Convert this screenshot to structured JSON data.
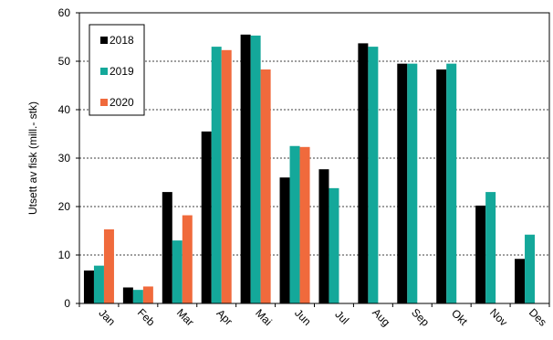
{
  "chart_data": {
    "type": "bar",
    "title": "",
    "xlabel": "",
    "ylabel": "Utsett av fisk (mill.- stk)",
    "ylim": [
      0,
      60
    ],
    "yticks": [
      0,
      10,
      20,
      30,
      40,
      50,
      60
    ],
    "grid": true,
    "legend_position": "top-left",
    "categories": [
      "Jan",
      "Feb",
      "Mar",
      "Apr",
      "Mai",
      "Jun",
      "Jul",
      "Aug",
      "Sep",
      "Okt",
      "Nov",
      "Des"
    ],
    "series": [
      {
        "name": "2018",
        "color": "#000000",
        "values": [
          6.8,
          3.3,
          23.0,
          35.5,
          55.5,
          26.0,
          27.7,
          53.7,
          49.5,
          48.3,
          20.2,
          9.2
        ]
      },
      {
        "name": "2019",
        "color": "#14a89a",
        "values": [
          7.8,
          2.8,
          13.0,
          53.0,
          55.3,
          32.5,
          23.8,
          53.0,
          49.5,
          49.5,
          23.0,
          14.2
        ]
      },
      {
        "name": "2020",
        "color": "#f06a3c",
        "values": [
          15.3,
          3.5,
          18.2,
          52.3,
          48.3,
          32.3,
          null,
          null,
          null,
          null,
          null,
          null
        ]
      }
    ]
  }
}
